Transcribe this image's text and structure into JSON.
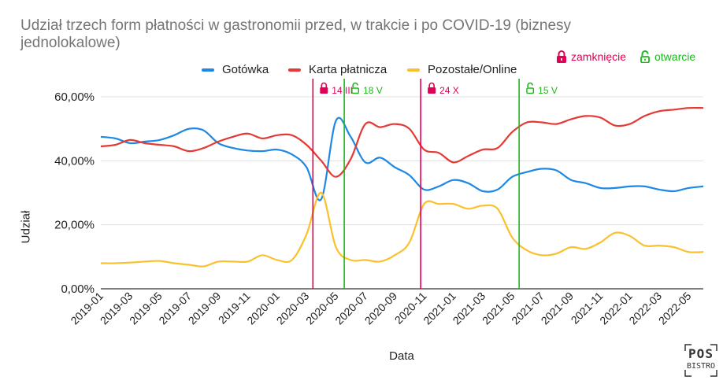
{
  "title": "Udział trzech form płatności w gastronomii przed, w trakcie i po COVID-19 (biznesy jednolokalowe)",
  "legend": {
    "series": [
      "Gotówka",
      "Karta płatnicza",
      "Pozostałe/Online"
    ],
    "closing_label": "zamknięcie",
    "opening_label": "otwarcie"
  },
  "logo": {
    "line1": "POS",
    "line2": "BISTRO"
  },
  "colors": {
    "gotowka": "#1e88e5",
    "karta": "#e53935",
    "online": "#fbc02d",
    "closing": "#e00055",
    "opening": "#1bb81b",
    "grid": "#e0e0e0"
  },
  "chart_data": {
    "type": "line",
    "xlabel": "Data",
    "ylabel": "Udział",
    "ylim": [
      0,
      60
    ],
    "yticks": [
      "0,00%",
      "20,00%",
      "40,00%",
      "60,00%"
    ],
    "xticks": [
      "2019-01",
      "2019-03",
      "2019-05",
      "2019-07",
      "2019-09",
      "2019-11",
      "2020-01",
      "2020-03",
      "2020-05",
      "2020-07",
      "2020-09",
      "2020-11",
      "2021-01",
      "2021-03",
      "2021-05",
      "2021-07",
      "2021-09",
      "2021-11",
      "2022-01",
      "2022-03",
      "2022-05"
    ],
    "x": [
      "2019-01",
      "2019-02",
      "2019-03",
      "2019-04",
      "2019-05",
      "2019-06",
      "2019-07",
      "2019-08",
      "2019-09",
      "2019-10",
      "2019-11",
      "2019-12",
      "2020-01",
      "2020-02",
      "2020-03",
      "2020-04",
      "2020-05",
      "2020-06",
      "2020-07",
      "2020-08",
      "2020-09",
      "2020-10",
      "2020-11",
      "2020-12",
      "2021-01",
      "2021-02",
      "2021-03",
      "2021-04",
      "2021-05",
      "2021-06",
      "2021-07",
      "2021-08",
      "2021-09",
      "2021-10",
      "2021-11",
      "2021-12",
      "2022-01",
      "2022-02",
      "2022-03",
      "2022-04",
      "2022-05",
      "2022-06"
    ],
    "series": [
      {
        "name": "Gotówka",
        "values": [
          47.5,
          47.0,
          45.5,
          46.0,
          46.5,
          48.0,
          50.0,
          49.5,
          45.5,
          44.0,
          43.2,
          43.0,
          43.5,
          42.0,
          38.0,
          28.0,
          52.5,
          47.5,
          39.5,
          41.0,
          38.0,
          35.5,
          31.0,
          32.0,
          34.0,
          33.0,
          30.5,
          31.0,
          35.0,
          36.5,
          37.5,
          37.0,
          34.0,
          33.0,
          31.5,
          31.5,
          32.0,
          32.0,
          31.0,
          30.5,
          31.5,
          32.0
        ]
      },
      {
        "name": "Karta płatnicza",
        "values": [
          44.5,
          45.0,
          46.5,
          45.5,
          45.0,
          44.5,
          43.0,
          44.0,
          46.0,
          47.5,
          48.5,
          47.0,
          48.0,
          48.0,
          45.0,
          40.0,
          35.0,
          40.5,
          51.5,
          50.5,
          51.5,
          50.0,
          43.5,
          42.5,
          39.5,
          41.5,
          43.5,
          44.0,
          49.0,
          52.0,
          52.0,
          51.5,
          53.0,
          54.0,
          53.5,
          51.0,
          51.5,
          54.0,
          55.5,
          56.0,
          56.5,
          56.5
        ]
      },
      {
        "name": "Pozostałe/Online",
        "values": [
          8.0,
          8.0,
          8.2,
          8.5,
          8.7,
          8.0,
          7.5,
          7.0,
          8.5,
          8.5,
          8.5,
          10.5,
          9.0,
          9.0,
          17.0,
          30.0,
          13.0,
          9.0,
          9.0,
          8.5,
          10.5,
          14.5,
          26.5,
          26.5,
          26.5,
          25.0,
          26.0,
          25.0,
          16.0,
          12.0,
          10.5,
          11.0,
          13.0,
          12.5,
          14.5,
          17.5,
          16.5,
          13.5,
          13.5,
          13.0,
          11.5,
          11.5
        ]
      }
    ],
    "events": [
      {
        "type": "closing",
        "date": "2020-03-14",
        "label": "14 III"
      },
      {
        "type": "opening",
        "date": "2020-05-18",
        "label": "18 V"
      },
      {
        "type": "closing",
        "date": "2020-10-24",
        "label": "24 X"
      },
      {
        "type": "opening",
        "date": "2021-05-15",
        "label": "15 V"
      }
    ],
    "grid": true,
    "legend_position": "top"
  }
}
